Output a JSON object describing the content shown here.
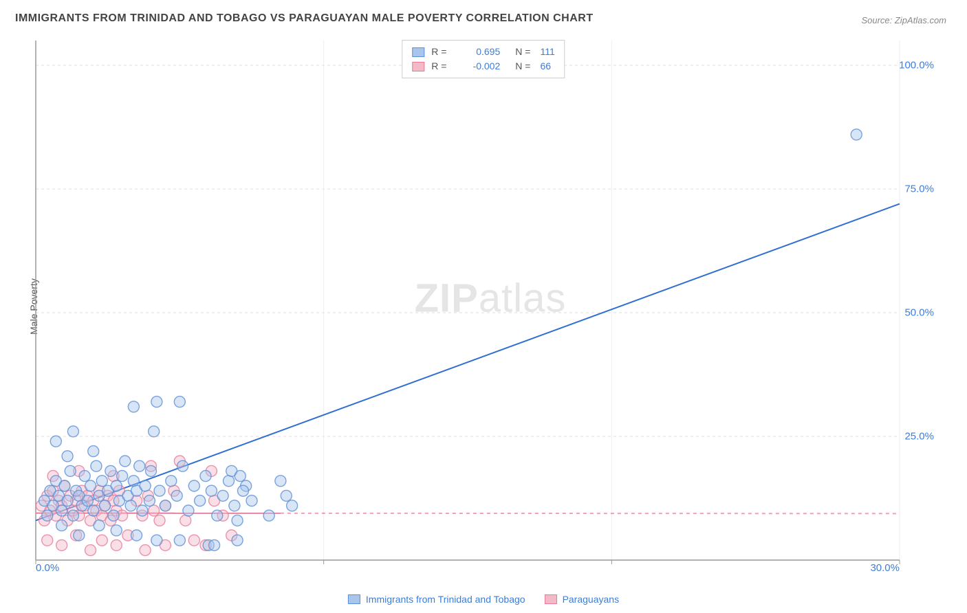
{
  "title": "IMMIGRANTS FROM TRINIDAD AND TOBAGO VS PARAGUAYAN MALE POVERTY CORRELATION CHART",
  "source": "Source: ZipAtlas.com",
  "y_axis_label": "Male Poverty",
  "watermark": {
    "zip": "ZIP",
    "atlas": "atlas"
  },
  "chart": {
    "type": "scatter-correlation",
    "background_color": "#ffffff",
    "axis_color": "#999999",
    "grid_major_color": "#dddddd",
    "grid_minor_color": "#eeeeee",
    "xlim": [
      0,
      30
    ],
    "ylim": [
      0,
      105
    ],
    "x_ticks": [
      0,
      10,
      20,
      30
    ],
    "x_tick_labels": [
      "0.0%",
      "",
      "",
      "30.0%"
    ],
    "y_ticks": [
      25,
      50,
      75,
      100
    ],
    "y_tick_labels": [
      "25.0%",
      "50.0%",
      "75.0%",
      "100.0%"
    ],
    "marker_radius": 8,
    "marker_opacity": 0.45,
    "line_width": 2,
    "series": [
      {
        "id": "trinidad",
        "name": "Immigrants from Trinidad and Tobago",
        "color_fill": "#a8c5eb",
        "color_stroke": "#5b8fd6",
        "r": 0.695,
        "n": 111,
        "trend": {
          "x1": 0,
          "y1": 8,
          "x2": 30,
          "y2": 72,
          "solid_until_x": 30,
          "color": "#2e6fd1"
        },
        "points": [
          [
            0.3,
            12
          ],
          [
            0.4,
            9
          ],
          [
            0.5,
            14
          ],
          [
            0.6,
            11
          ],
          [
            0.7,
            16
          ],
          [
            0.8,
            13
          ],
          [
            0.9,
            10
          ],
          [
            1.0,
            15
          ],
          [
            1.1,
            12
          ],
          [
            1.2,
            18
          ],
          [
            1.3,
            9
          ],
          [
            1.4,
            14
          ],
          [
            1.5,
            13
          ],
          [
            1.6,
            11
          ],
          [
            1.7,
            17
          ],
          [
            1.8,
            12
          ],
          [
            1.9,
            15
          ],
          [
            2.0,
            10
          ],
          [
            2.1,
            19
          ],
          [
            2.2,
            13
          ],
          [
            2.3,
            16
          ],
          [
            2.4,
            11
          ],
          [
            2.5,
            14
          ],
          [
            2.6,
            18
          ],
          [
            2.7,
            9
          ],
          [
            2.8,
            15
          ],
          [
            2.9,
            12
          ],
          [
            3.0,
            17
          ],
          [
            3.1,
            20
          ],
          [
            3.2,
            13
          ],
          [
            3.3,
            11
          ],
          [
            3.4,
            16
          ],
          [
            3.5,
            14
          ],
          [
            3.6,
            19
          ],
          [
            3.7,
            10
          ],
          [
            3.8,
            15
          ],
          [
            3.95,
            12
          ],
          [
            4.1,
            26
          ],
          [
            0.9,
            7
          ],
          [
            2.2,
            7
          ],
          [
            2.8,
            6
          ],
          [
            3.5,
            5
          ],
          [
            4.2,
            4
          ],
          [
            4.0,
            18
          ],
          [
            4.3,
            14
          ],
          [
            4.5,
            11
          ],
          [
            4.7,
            16
          ],
          [
            4.9,
            13
          ],
          [
            5.1,
            19
          ],
          [
            5.3,
            10
          ],
          [
            5.5,
            15
          ],
          [
            5.7,
            12
          ],
          [
            5.9,
            17
          ],
          [
            6.1,
            14
          ],
          [
            6.0,
            3
          ],
          [
            5.0,
            4
          ],
          [
            1.5,
            5
          ],
          [
            0.7,
            24
          ],
          [
            1.3,
            26
          ],
          [
            3.4,
            31
          ],
          [
            4.2,
            32
          ],
          [
            5.0,
            32
          ],
          [
            2.0,
            22
          ],
          [
            1.1,
            21
          ],
          [
            6.3,
            9
          ],
          [
            6.5,
            13
          ],
          [
            6.7,
            16
          ],
          [
            6.9,
            11
          ],
          [
            7.0,
            8
          ],
          [
            6.8,
            18
          ],
          [
            7.3,
            15
          ],
          [
            7.5,
            12
          ],
          [
            8.1,
            9
          ],
          [
            7.1,
            17
          ],
          [
            7.2,
            14
          ],
          [
            8.5,
            16
          ],
          [
            8.7,
            13
          ],
          [
            8.9,
            11
          ],
          [
            6.2,
            3
          ],
          [
            7.0,
            4
          ],
          [
            28.5,
            86
          ]
        ]
      },
      {
        "id": "paraguay",
        "name": "Paraguayans",
        "color_fill": "#f4b9c7",
        "color_stroke": "#e77a9a",
        "r": -0.002,
        "n": 66,
        "trend": {
          "x1": 0,
          "y1": 9.5,
          "x2": 30,
          "y2": 9.4,
          "solid_until_x": 8.5,
          "color": "#e77a9a"
        },
        "points": [
          [
            0.2,
            11
          ],
          [
            0.3,
            8
          ],
          [
            0.4,
            13
          ],
          [
            0.5,
            10
          ],
          [
            0.6,
            14
          ],
          [
            0.7,
            9
          ],
          [
            0.8,
            12
          ],
          [
            0.9,
            11
          ],
          [
            1.0,
            15
          ],
          [
            1.1,
            8
          ],
          [
            1.2,
            13
          ],
          [
            1.3,
            10
          ],
          [
            1.4,
            12
          ],
          [
            1.5,
            9
          ],
          [
            1.6,
            14
          ],
          [
            1.7,
            11
          ],
          [
            1.8,
            13
          ],
          [
            1.9,
            8
          ],
          [
            2.0,
            12
          ],
          [
            2.1,
            10
          ],
          [
            2.2,
            14
          ],
          [
            2.3,
            9
          ],
          [
            2.4,
            11
          ],
          [
            2.5,
            13
          ],
          [
            2.6,
            8
          ],
          [
            2.7,
            12
          ],
          [
            2.8,
            10
          ],
          [
            2.9,
            14
          ],
          [
            3.0,
            9
          ],
          [
            0.4,
            4
          ],
          [
            0.9,
            3
          ],
          [
            1.4,
            5
          ],
          [
            1.9,
            2
          ],
          [
            2.3,
            4
          ],
          [
            2.8,
            3
          ],
          [
            3.2,
            5
          ],
          [
            0.6,
            17
          ],
          [
            1.5,
            18
          ],
          [
            2.7,
            17
          ],
          [
            3.5,
            12
          ],
          [
            3.7,
            9
          ],
          [
            3.9,
            13
          ],
          [
            4.1,
            10
          ],
          [
            4.3,
            8
          ],
          [
            4.5,
            11
          ],
          [
            4.8,
            14
          ],
          [
            5.2,
            8
          ],
          [
            5.5,
            4
          ],
          [
            5.9,
            3
          ],
          [
            6.2,
            12
          ],
          [
            4.0,
            19
          ],
          [
            6.5,
            9
          ],
          [
            6.8,
            5
          ],
          [
            5.0,
            20
          ],
          [
            4.5,
            3
          ],
          [
            3.8,
            2
          ],
          [
            6.1,
            18
          ]
        ]
      }
    ]
  },
  "legend_top": {
    "r_label": "R =",
    "n_label": "N ="
  },
  "legend_bottom": {
    "items": [
      "Immigrants from Trinidad and Tobago",
      "Paraguayans"
    ]
  }
}
